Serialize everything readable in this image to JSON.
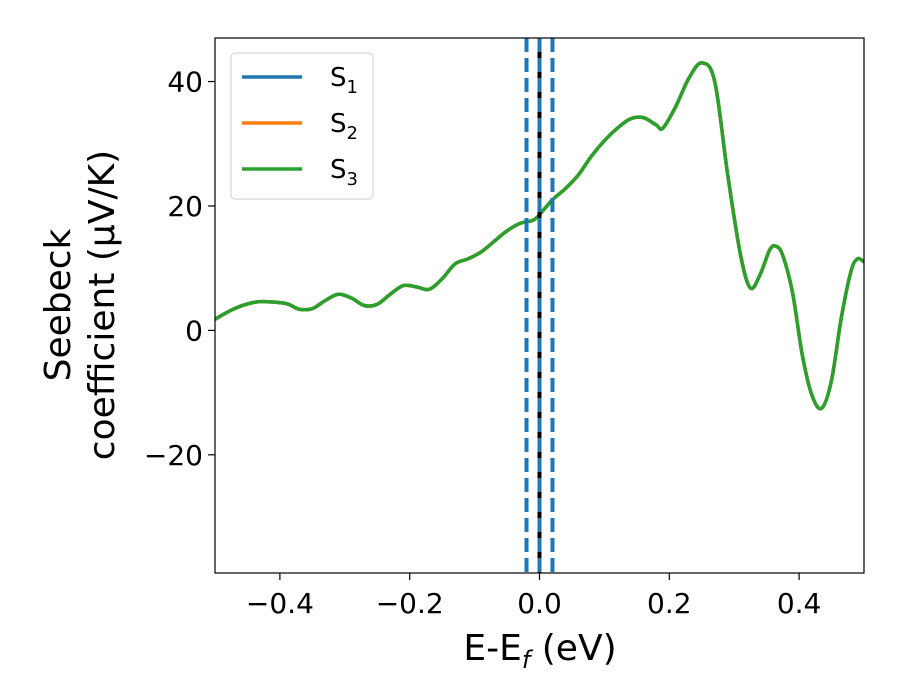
{
  "chart_data": {
    "type": "line",
    "xlabel_main": "E-E",
    "xlabel_sub": "f",
    "xlabel_unit": " (eV)",
    "ylabel_line1": "Seebeck",
    "ylabel_line2": "coefficient  (μV/K)",
    "xlim": [
      -0.5,
      0.5
    ],
    "ylim": [
      -39,
      47
    ],
    "xticks": [
      -0.4,
      -0.2,
      0.0,
      0.2,
      0.4
    ],
    "xtick_labels": [
      "−0.4",
      "−0.2",
      "0.0",
      "0.2",
      "0.4"
    ],
    "yticks": [
      40,
      20,
      0,
      -20
    ],
    "ytick_labels": [
      "40",
      "20",
      "0",
      "−20"
    ],
    "legend_placement": "top-left",
    "grid": false,
    "series": [
      {
        "name": "S",
        "sub": "1",
        "color": "#1f77b4"
      },
      {
        "name": "S",
        "sub": "2",
        "color": "#ff7f0e"
      },
      {
        "name": "S",
        "sub": "3",
        "color": "#2ca02c"
      }
    ],
    "curve": {
      "x": [
        -0.5,
        -0.47,
        -0.44,
        -0.42,
        -0.39,
        -0.37,
        -0.35,
        -0.33,
        -0.31,
        -0.29,
        -0.27,
        -0.25,
        -0.23,
        -0.21,
        -0.19,
        -0.17,
        -0.15,
        -0.13,
        -0.11,
        -0.09,
        -0.07,
        -0.05,
        -0.03,
        -0.01,
        0.0,
        0.02,
        0.04,
        0.06,
        0.08,
        0.1,
        0.12,
        0.14,
        0.16,
        0.18,
        0.19,
        0.21,
        0.23,
        0.25,
        0.27,
        0.29,
        0.31,
        0.325,
        0.34,
        0.355,
        0.365,
        0.375,
        0.39,
        0.405,
        0.42,
        0.435,
        0.45,
        0.465,
        0.48,
        0.49,
        0.5
      ],
      "y": [
        1.8,
        3.5,
        4.5,
        4.6,
        4.3,
        3.4,
        3.5,
        4.8,
        5.8,
        5.2,
        4.0,
        4.2,
        5.8,
        7.2,
        7.0,
        6.6,
        8.3,
        10.7,
        11.5,
        12.6,
        14.3,
        16.0,
        17.2,
        17.7,
        18.6,
        21.0,
        22.8,
        25.0,
        28.0,
        30.5,
        32.5,
        34.0,
        34.2,
        33.0,
        32.5,
        36.0,
        40.5,
        43.0,
        40.0,
        25.0,
        12.0,
        6.8,
        9.0,
        13.0,
        13.5,
        12.0,
        6.0,
        -4.0,
        -10.5,
        -12.5,
        -8.0,
        2.0,
        9.5,
        11.5,
        11.0
      ]
    },
    "vlines": [
      {
        "x": -0.02,
        "style": "dashed",
        "color": "#1f77b4"
      },
      {
        "x": 0.02,
        "style": "dashed",
        "color": "#1f77b4"
      },
      {
        "x": 0.0,
        "style": "solid",
        "color": "#000000"
      },
      {
        "x": 0.0,
        "style": "dashed",
        "color": "#1f77b4"
      }
    ]
  }
}
